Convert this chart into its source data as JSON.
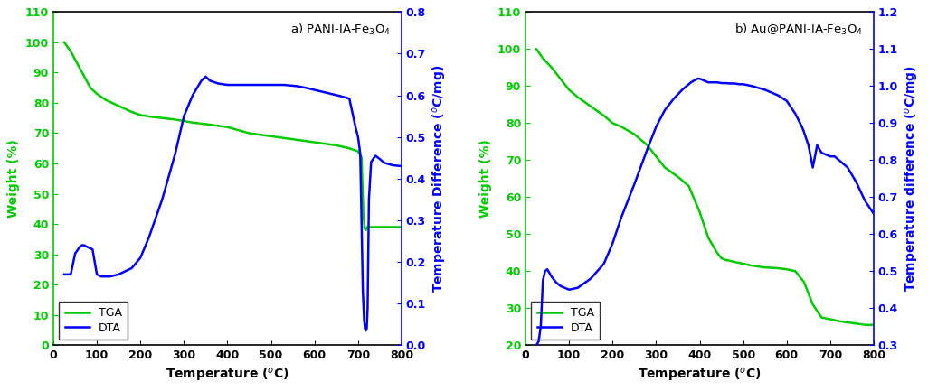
{
  "panel_a": {
    "title": "a) PANI-IA-Fe$_3$O$_4$",
    "tga_x": [
      25,
      40,
      55,
      70,
      85,
      100,
      120,
      150,
      180,
      200,
      220,
      250,
      280,
      300,
      320,
      350,
      400,
      450,
      500,
      550,
      600,
      650,
      680,
      700,
      708,
      712,
      715,
      718,
      721,
      725,
      730,
      740,
      750,
      760,
      780,
      800
    ],
    "tga_y": [
      100,
      97,
      93,
      89,
      85,
      83,
      81,
      79,
      77,
      76,
      75.5,
      75,
      74.5,
      74,
      73.5,
      73,
      72,
      70,
      69,
      68,
      67,
      66,
      65,
      64,
      62,
      44,
      38.5,
      38,
      39,
      39,
      39,
      39,
      39,
      39,
      39,
      39
    ],
    "dta_x": [
      25,
      40,
      50,
      60,
      65,
      70,
      80,
      90,
      100,
      110,
      130,
      150,
      180,
      200,
      220,
      250,
      280,
      300,
      320,
      340,
      350,
      360,
      380,
      400,
      420,
      450,
      480,
      500,
      530,
      560,
      580,
      600,
      620,
      640,
      660,
      680,
      695,
      700,
      705,
      708,
      711,
      714,
      716,
      718,
      720,
      722,
      725,
      730,
      740,
      750,
      760,
      780,
      800
    ],
    "dta_y": [
      0.17,
      0.17,
      0.22,
      0.235,
      0.24,
      0.24,
      0.235,
      0.23,
      0.17,
      0.165,
      0.165,
      0.17,
      0.185,
      0.21,
      0.26,
      0.35,
      0.46,
      0.55,
      0.6,
      0.635,
      0.645,
      0.635,
      0.628,
      0.625,
      0.625,
      0.625,
      0.625,
      0.625,
      0.625,
      0.622,
      0.618,
      0.613,
      0.608,
      0.603,
      0.598,
      0.592,
      0.52,
      0.5,
      0.46,
      0.3,
      0.13,
      0.06,
      0.04,
      0.035,
      0.04,
      0.09,
      0.35,
      0.44,
      0.455,
      0.447,
      0.438,
      0.432,
      0.43
    ],
    "tga_color": "#00cc00",
    "dta_color": "#0000ff",
    "xlim": [
      0,
      800
    ],
    "ylim_left": [
      0,
      110
    ],
    "ylim_right": [
      0.0,
      0.8
    ],
    "yticks_left": [
      0,
      10,
      20,
      30,
      40,
      50,
      60,
      70,
      80,
      90,
      100,
      110
    ],
    "yticks_right": [
      0.0,
      0.1,
      0.2,
      0.3,
      0.4,
      0.5,
      0.6,
      0.7,
      0.8
    ],
    "xticks": [
      0,
      100,
      200,
      300,
      400,
      500,
      600,
      700,
      800
    ],
    "ylabel_left": "Weight (%)",
    "ylabel_right": "Temperature Difference ($^{o}$C/mg)",
    "xlabel": "Temperature ($^{o}$C)"
  },
  "panel_b": {
    "title": "b) Au@PANI-IA-Fe$_3$O$_4$",
    "tga_x": [
      25,
      40,
      60,
      80,
      100,
      120,
      150,
      180,
      200,
      220,
      250,
      280,
      300,
      320,
      350,
      375,
      400,
      420,
      440,
      450,
      460,
      470,
      480,
      500,
      520,
      550,
      580,
      600,
      620,
      640,
      660,
      680,
      700,
      720,
      750,
      780,
      800
    ],
    "tga_y": [
      100,
      97.5,
      95,
      92,
      89,
      87,
      84.5,
      82,
      80,
      79,
      77,
      74,
      71,
      68,
      65.5,
      63,
      56,
      49,
      45,
      43.5,
      43,
      42.8,
      42.5,
      42,
      41.5,
      41,
      40.8,
      40.5,
      40,
      37,
      31,
      27.5,
      27,
      26.5,
      26,
      25.5,
      25.5
    ],
    "dta_x": [
      25,
      30,
      35,
      40,
      45,
      50,
      55,
      60,
      70,
      80,
      100,
      120,
      150,
      180,
      200,
      220,
      250,
      280,
      300,
      320,
      340,
      360,
      380,
      395,
      400,
      410,
      420,
      430,
      440,
      450,
      460,
      470,
      480,
      490,
      500,
      520,
      550,
      580,
      600,
      620,
      635,
      640,
      650,
      660,
      670,
      675,
      680,
      690,
      700,
      710,
      720,
      740,
      760,
      780,
      800
    ],
    "dta_y": [
      0.3,
      0.31,
      0.35,
      0.475,
      0.5,
      0.505,
      0.495,
      0.485,
      0.47,
      0.46,
      0.45,
      0.455,
      0.48,
      0.52,
      0.575,
      0.645,
      0.735,
      0.83,
      0.89,
      0.935,
      0.965,
      0.99,
      1.01,
      1.02,
      1.02,
      1.015,
      1.01,
      1.01,
      1.01,
      1.008,
      1.008,
      1.007,
      1.007,
      1.005,
      1.005,
      1.0,
      0.99,
      0.975,
      0.96,
      0.925,
      0.89,
      0.875,
      0.84,
      0.78,
      0.84,
      0.83,
      0.82,
      0.815,
      0.81,
      0.81,
      0.8,
      0.78,
      0.74,
      0.69,
      0.655
    ],
    "tga_color": "#00cc00",
    "dta_color": "#0000ff",
    "xlim": [
      0,
      800
    ],
    "ylim_left": [
      20,
      110
    ],
    "ylim_right": [
      0.3,
      1.2
    ],
    "yticks_left": [
      20,
      30,
      40,
      50,
      60,
      70,
      80,
      90,
      100,
      110
    ],
    "yticks_right": [
      0.3,
      0.4,
      0.5,
      0.6,
      0.7,
      0.8,
      0.9,
      1.0,
      1.1,
      1.2
    ],
    "xticks": [
      0,
      100,
      200,
      300,
      400,
      500,
      600,
      700,
      800
    ],
    "ylabel_left": "Weight (%)",
    "ylabel_right": "Temperature difference ($^{o}$C/mg)",
    "xlabel": "Temperature ($^{o}$C)"
  },
  "fig_width": 10.26,
  "fig_height": 4.33,
  "dpi": 100
}
